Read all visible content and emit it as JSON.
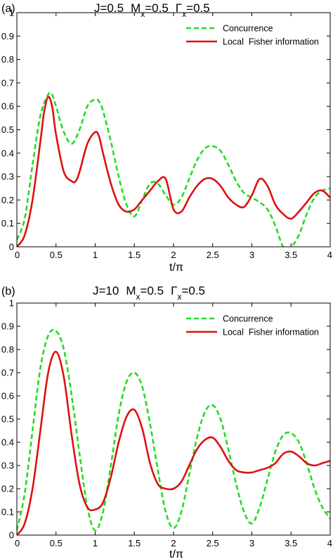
{
  "chart_data": [
    {
      "type": "line",
      "panel_label": "(a)",
      "title_parts": {
        "j": "J=0.5",
        "m": "M",
        "m_sub": "x",
        "m_val": "=0.5",
        "g": "Γ",
        "g_sub": "x",
        "g_val": "=0.5"
      },
      "xlabel": "t/π",
      "ylabel": "",
      "xlim": [
        0,
        4
      ],
      "ylim": [
        0,
        1
      ],
      "xticks": [
        "0",
        "0.5",
        "1",
        "1.5",
        "2",
        "2.5",
        "3",
        "3.5",
        "4"
      ],
      "yticks": [
        "0",
        "0.1",
        "0.2",
        "0.3",
        "0.4",
        "0.5",
        "0.6",
        "0.7",
        "0.8",
        "0.9",
        "1"
      ],
      "grid": false,
      "legend_position": "top-right",
      "series": [
        {
          "name": "Concurrence",
          "color": "#22dd22",
          "style": "dashed",
          "x": [
            0,
            0.1,
            0.2,
            0.3,
            0.4,
            0.45,
            0.5,
            0.6,
            0.7,
            0.8,
            0.9,
            1.0,
            1.05,
            1.1,
            1.2,
            1.3,
            1.4,
            1.5,
            1.6,
            1.7,
            1.8,
            1.9,
            2.0,
            2.1,
            2.2,
            2.3,
            2.4,
            2.5,
            2.6,
            2.7,
            2.8,
            2.9,
            3.0,
            3.1,
            3.2,
            3.3,
            3.4,
            3.5,
            3.6,
            3.7,
            3.8,
            3.9,
            4.0
          ],
          "y": [
            0.03,
            0.12,
            0.35,
            0.56,
            0.65,
            0.65,
            0.6,
            0.49,
            0.44,
            0.5,
            0.6,
            0.63,
            0.62,
            0.58,
            0.45,
            0.3,
            0.18,
            0.13,
            0.2,
            0.27,
            0.27,
            0.22,
            0.18,
            0.21,
            0.29,
            0.37,
            0.42,
            0.43,
            0.41,
            0.35,
            0.28,
            0.23,
            0.21,
            0.19,
            0.16,
            0.09,
            0.0,
            0.0,
            0.05,
            0.14,
            0.21,
            0.24,
            0.25
          ]
        },
        {
          "name": "Local  Fisher information",
          "color": "#dd1111",
          "style": "solid",
          "x": [
            0,
            0.1,
            0.2,
            0.3,
            0.35,
            0.4,
            0.45,
            0.5,
            0.6,
            0.7,
            0.75,
            0.8,
            0.9,
            1.0,
            1.05,
            1.1,
            1.2,
            1.3,
            1.4,
            1.5,
            1.6,
            1.7,
            1.8,
            1.9,
            2.0,
            2.1,
            2.2,
            2.3,
            2.4,
            2.5,
            2.6,
            2.7,
            2.8,
            2.9,
            3.0,
            3.1,
            3.2,
            3.3,
            3.4,
            3.5,
            3.6,
            3.7,
            3.8,
            3.9,
            4.0
          ],
          "y": [
            0.0,
            0.05,
            0.2,
            0.45,
            0.58,
            0.64,
            0.6,
            0.48,
            0.32,
            0.28,
            0.28,
            0.32,
            0.44,
            0.49,
            0.47,
            0.4,
            0.27,
            0.18,
            0.15,
            0.16,
            0.2,
            0.24,
            0.28,
            0.29,
            0.16,
            0.15,
            0.21,
            0.26,
            0.29,
            0.29,
            0.26,
            0.21,
            0.18,
            0.17,
            0.22,
            0.29,
            0.26,
            0.18,
            0.14,
            0.12,
            0.15,
            0.19,
            0.23,
            0.24,
            0.21
          ]
        }
      ]
    },
    {
      "type": "line",
      "panel_label": "(b)",
      "title_parts": {
        "j": "J=10",
        "m": "M",
        "m_sub": "x",
        "m_val": "=0.5",
        "g": "Γ",
        "g_sub": "x",
        "g_val": "=0.5"
      },
      "xlabel": "t/π",
      "ylabel": "",
      "xlim": [
        0,
        4
      ],
      "ylim": [
        0,
        1
      ],
      "xticks": [
        "0",
        "0.5",
        "1",
        "1.5",
        "2",
        "2.5",
        "3",
        "3.5",
        "4"
      ],
      "yticks": [
        "0",
        "0.1",
        "0.2",
        "0.3",
        "0.4",
        "0.5",
        "0.6",
        "0.7",
        "0.8",
        "0.9",
        "1"
      ],
      "grid": false,
      "legend_position": "top-right",
      "series": [
        {
          "name": "Concurrence",
          "color": "#22dd22",
          "style": "dashed",
          "x": [
            0,
            0.1,
            0.2,
            0.3,
            0.4,
            0.5,
            0.6,
            0.7,
            0.8,
            0.9,
            1.0,
            1.1,
            1.2,
            1.3,
            1.4,
            1.5,
            1.6,
            1.7,
            1.8,
            1.9,
            2.0,
            2.1,
            2.2,
            2.3,
            2.4,
            2.5,
            2.6,
            2.7,
            2.8,
            2.9,
            3.0,
            3.1,
            3.2,
            3.3,
            3.4,
            3.5,
            3.6,
            3.7,
            3.8,
            3.9,
            4.0
          ],
          "y": [
            0.02,
            0.18,
            0.45,
            0.72,
            0.86,
            0.88,
            0.8,
            0.6,
            0.35,
            0.12,
            0.02,
            0.1,
            0.3,
            0.52,
            0.66,
            0.7,
            0.64,
            0.48,
            0.28,
            0.1,
            0.03,
            0.1,
            0.26,
            0.42,
            0.53,
            0.56,
            0.5,
            0.37,
            0.22,
            0.1,
            0.05,
            0.12,
            0.24,
            0.36,
            0.43,
            0.44,
            0.4,
            0.31,
            0.2,
            0.12,
            0.07
          ]
        },
        {
          "name": "Local  Fisher information",
          "color": "#dd1111",
          "style": "solid",
          "x": [
            0,
            0.1,
            0.2,
            0.3,
            0.4,
            0.5,
            0.6,
            0.7,
            0.8,
            0.9,
            1.0,
            1.1,
            1.2,
            1.3,
            1.4,
            1.5,
            1.6,
            1.7,
            1.8,
            1.9,
            2.0,
            2.1,
            2.2,
            2.3,
            2.4,
            2.5,
            2.6,
            2.7,
            2.8,
            2.9,
            3.0,
            3.1,
            3.2,
            3.3,
            3.4,
            3.5,
            3.6,
            3.7,
            3.8,
            3.9,
            4.0
          ],
          "y": [
            0.0,
            0.05,
            0.2,
            0.45,
            0.7,
            0.79,
            0.68,
            0.43,
            0.22,
            0.12,
            0.11,
            0.14,
            0.25,
            0.4,
            0.51,
            0.54,
            0.46,
            0.31,
            0.22,
            0.2,
            0.2,
            0.23,
            0.3,
            0.37,
            0.41,
            0.42,
            0.38,
            0.32,
            0.28,
            0.27,
            0.27,
            0.28,
            0.29,
            0.31,
            0.35,
            0.36,
            0.34,
            0.31,
            0.3,
            0.31,
            0.32
          ]
        }
      ]
    }
  ]
}
